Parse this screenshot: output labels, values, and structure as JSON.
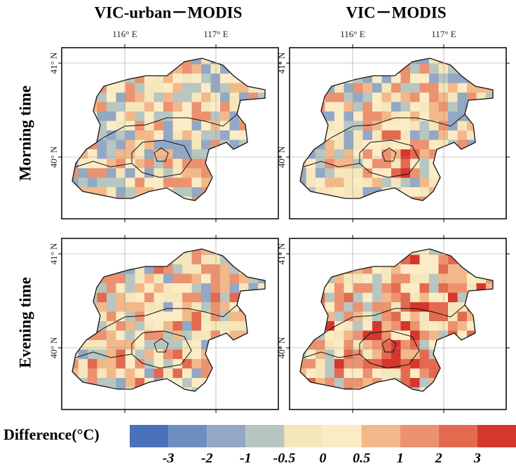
{
  "columns": [
    "VIC-urban－MODIS",
    "VIC－MODIS"
  ],
  "rows": [
    "Morning time",
    "Evening time"
  ],
  "lon_labels": [
    "116° E",
    "117° E"
  ],
  "lat_labels": [
    "41° N",
    "40° N"
  ],
  "colorbar": {
    "label": "Difference(°C)",
    "colors": [
      "#4a72b8",
      "#6f8ec0",
      "#93a8c4",
      "#b7c6c0",
      "#f5e6bb",
      "#fbecc6",
      "#f3b889",
      "#ec9270",
      "#e36a4f",
      "#d5372d"
    ],
    "ticks": [
      "-3",
      "-2",
      "-1",
      "-0.5",
      "0",
      "0.5",
      "1",
      "2",
      "3"
    ]
  }
}
